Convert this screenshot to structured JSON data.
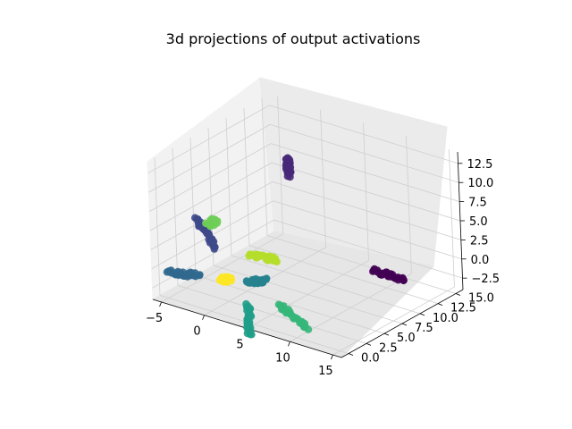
{
  "chart_data": {
    "type": "scatter",
    "projection": "3d",
    "title": "3d projections of output activations",
    "xlabel": "",
    "ylabel": "",
    "zlabel": "",
    "x_ticks": [
      "−5",
      "0",
      "5",
      "10",
      "15"
    ],
    "y_ticks": [
      "0.0",
      "2.5",
      "5.0",
      "7.5",
      "10.0",
      "12.5",
      "15.0"
    ],
    "z_ticks": [
      "−2.5",
      "0.0",
      "2.5",
      "5.0",
      "7.5",
      "10.0",
      "12.5"
    ],
    "x_range": [
      -6,
      16
    ],
    "y_range": [
      -1,
      16
    ],
    "z_range": [
      -4,
      14
    ],
    "grid": true,
    "colormap": "viridis",
    "clusters": [
      {
        "color": "#440154",
        "x": 12.5,
        "y": 10.0,
        "z": -0.2,
        "shape": "horizontal elongated"
      },
      {
        "color": "#482878",
        "x": 2.0,
        "y": 9.0,
        "z": 11.0,
        "shape": "vertical elongated"
      },
      {
        "color": "#3e4989",
        "x": -2.0,
        "y": 2.0,
        "z": 4.5,
        "shape": "elongated arm"
      },
      {
        "color": "#31688e",
        "x": -4.0,
        "y": 1.0,
        "z": -1.0,
        "shape": "elongated arm"
      },
      {
        "color": "#26828e",
        "x": 2.0,
        "y": 4.0,
        "z": -1.5,
        "shape": "elongated arm"
      },
      {
        "color": "#1f9e89",
        "x": 4.0,
        "y": 0.5,
        "z": -4.0,
        "shape": "elongated arm"
      },
      {
        "color": "#35b779",
        "x": 8.0,
        "y": 2.0,
        "z": -3.0,
        "shape": "elongated arm"
      },
      {
        "color": "#6ece58",
        "x": -2.5,
        "y": 3.5,
        "z": 5.0,
        "shape": "small arm"
      },
      {
        "color": "#b5de2b",
        "x": 3.0,
        "y": 4.0,
        "z": 2.0,
        "shape": "central blob"
      },
      {
        "color": "#fde725",
        "x": 1.0,
        "y": 1.0,
        "z": 0.0,
        "shape": "central blob"
      }
    ]
  }
}
